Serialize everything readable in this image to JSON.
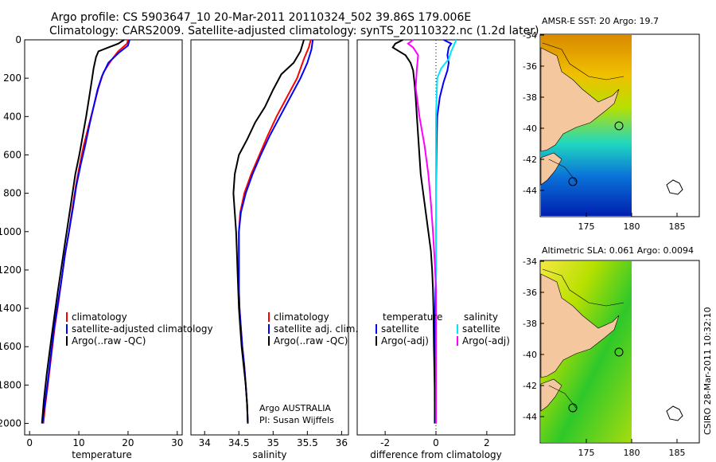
{
  "header": {
    "line1": "Argo profile: CS 5903647_10 20-Mar-2011 20110324_502 39.86S 179.006E",
    "line2": "Climatology: CARS2009. Satellite-adjusted climatology: synTS_20110322.nc (1.2d later)"
  },
  "colors": {
    "climatology": "#ff0000",
    "satellite": "#0000ff",
    "argo": "#000000",
    "salinity_satellite": "#00e5ff",
    "salinity_argo": "#ff00ff"
  },
  "chart_data": [
    {
      "type": "line",
      "xlabel": "temperature",
      "xlim": [
        -1,
        31
      ],
      "xticks": [
        "0",
        "10",
        "20",
        "30"
      ],
      "ylim": [
        0,
        2060
      ],
      "yticks": [
        "0",
        "200",
        "400",
        "600",
        "800",
        "1000",
        "1200",
        "1400",
        "1600",
        "1800",
        "2000"
      ],
      "legend": [
        "climatology",
        "satellite-adjusted climatology",
        "Argo(..raw -QC)"
      ],
      "series": [
        {
          "name": "climatology",
          "color": "climatology",
          "points": [
            [
              20,
              0
            ],
            [
              19.8,
              20
            ],
            [
              18,
              60
            ],
            [
              16.5,
              110
            ],
            [
              15,
              170
            ],
            [
              14,
              250
            ],
            [
              13,
              350
            ],
            [
              12,
              450
            ],
            [
              11,
              550
            ],
            [
              10.2,
              650
            ],
            [
              9.4,
              760
            ],
            [
              8.7,
              880
            ],
            [
              8,
              1000
            ],
            [
              7.2,
              1120
            ],
            [
              6.5,
              1250
            ],
            [
              5.8,
              1380
            ],
            [
              5.1,
              1500
            ],
            [
              4.4,
              1650
            ],
            [
              3.7,
              1800
            ],
            [
              3.1,
              1920
            ],
            [
              2.8,
              2000
            ]
          ]
        },
        {
          "name": "satellite-adjusted climatology",
          "color": "satellite",
          "points": [
            [
              20.3,
              0
            ],
            [
              20,
              30
            ],
            [
              18,
              70
            ],
            [
              16,
              120
            ],
            [
              14.7,
              190
            ],
            [
              13.8,
              260
            ],
            [
              13,
              350
            ],
            [
              12.1,
              450
            ],
            [
              11.3,
              550
            ],
            [
              10.4,
              650
            ],
            [
              9.5,
              760
            ],
            [
              8.8,
              880
            ],
            [
              8,
              1000
            ],
            [
              7.2,
              1120
            ],
            [
              6.5,
              1250
            ],
            [
              5.7,
              1380
            ],
            [
              5,
              1500
            ],
            [
              4.3,
              1650
            ],
            [
              3.6,
              1800
            ],
            [
              3,
              1920
            ],
            [
              2.6,
              2000
            ]
          ]
        },
        {
          "name": "Argo(..raw -QC)",
          "color": "argo",
          "points": [
            [
              19.2,
              0
            ],
            [
              18,
              20
            ],
            [
              16,
              40
            ],
            [
              14,
              60
            ],
            [
              13.5,
              90
            ],
            [
              13,
              150
            ],
            [
              12.6,
              220
            ],
            [
              12.1,
              300
            ],
            [
              11.5,
              400
            ],
            [
              10.8,
              500
            ],
            [
              10.1,
              600
            ],
            [
              9.3,
              700
            ],
            [
              8.6,
              820
            ],
            [
              7.9,
              940
            ],
            [
              7.2,
              1060
            ],
            [
              6.5,
              1180
            ],
            [
              5.8,
              1300
            ],
            [
              5.1,
              1430
            ],
            [
              4.3,
              1580
            ],
            [
              3.5,
              1740
            ],
            [
              2.9,
              1880
            ],
            [
              2.5,
              2000
            ]
          ]
        }
      ]
    },
    {
      "type": "line",
      "xlabel": "salinity",
      "xlim": [
        33.8,
        36.1
      ],
      "xticks": [
        "34",
        "34.5",
        "35",
        "35.5",
        "36"
      ],
      "ylim": [
        0,
        2060
      ],
      "legend": [
        "climatology",
        "satellite adj. clim.",
        "Argo(..raw -QC)"
      ],
      "annotation": [
        "Argo AUSTRALIA",
        "PI: Susan Wijffels"
      ],
      "series": [
        {
          "name": "climatology",
          "color": "climatology",
          "points": [
            [
              35.55,
              0
            ],
            [
              35.52,
              40
            ],
            [
              35.45,
              100
            ],
            [
              35.35,
              200
            ],
            [
              35.2,
              300
            ],
            [
              35.05,
              400
            ],
            [
              34.92,
              500
            ],
            [
              34.8,
              600
            ],
            [
              34.68,
              700
            ],
            [
              34.58,
              800
            ],
            [
              34.52,
              900
            ],
            [
              34.5,
              1000
            ],
            [
              34.5,
              1100
            ],
            [
              34.5,
              1200
            ],
            [
              34.5,
              1300
            ],
            [
              34.51,
              1400
            ],
            [
              34.53,
              1500
            ],
            [
              34.55,
              1600
            ],
            [
              34.58,
              1700
            ],
            [
              34.6,
              1800
            ],
            [
              34.62,
              1900
            ],
            [
              34.63,
              2000
            ]
          ]
        },
        {
          "name": "satellite adj. clim.",
          "color": "satellite",
          "points": [
            [
              35.58,
              0
            ],
            [
              35.56,
              50
            ],
            [
              35.5,
              120
            ],
            [
              35.4,
              200
            ],
            [
              35.25,
              300
            ],
            [
              35.1,
              400
            ],
            [
              34.95,
              500
            ],
            [
              34.82,
              600
            ],
            [
              34.7,
              700
            ],
            [
              34.6,
              800
            ],
            [
              34.53,
              900
            ],
            [
              34.5,
              1000
            ],
            [
              34.5,
              1100
            ],
            [
              34.5,
              1200
            ],
            [
              34.5,
              1300
            ],
            [
              34.51,
              1400
            ],
            [
              34.53,
              1500
            ],
            [
              34.55,
              1600
            ],
            [
              34.58,
              1700
            ],
            [
              34.6,
              1800
            ],
            [
              34.62,
              1900
            ],
            [
              34.63,
              2000
            ]
          ]
        },
        {
          "name": "Argo(..raw -QC)",
          "color": "argo",
          "points": [
            [
              35.45,
              0
            ],
            [
              35.4,
              60
            ],
            [
              35.3,
              120
            ],
            [
              35.12,
              180
            ],
            [
              35.0,
              260
            ],
            [
              34.88,
              350
            ],
            [
              34.74,
              430
            ],
            [
              34.62,
              520
            ],
            [
              34.5,
              600
            ],
            [
              34.44,
              700
            ],
            [
              34.42,
              800
            ],
            [
              34.44,
              900
            ],
            [
              34.46,
              1000
            ],
            [
              34.47,
              1100
            ],
            [
              34.48,
              1200
            ],
            [
              34.49,
              1300
            ],
            [
              34.5,
              1400
            ],
            [
              34.52,
              1500
            ],
            [
              34.54,
              1600
            ],
            [
              34.57,
              1700
            ],
            [
              34.6,
              1800
            ],
            [
              34.62,
              1900
            ],
            [
              34.63,
              2000
            ]
          ]
        }
      ]
    },
    {
      "type": "line",
      "xlabel": "difference from climatology",
      "xlim": [
        -3.1,
        3.1
      ],
      "xticks": [
        "-2",
        "0",
        "2"
      ],
      "ylim": [
        0,
        2060
      ],
      "legend_left_title": "temperature",
      "legend_right_title": "salinity",
      "legend_left": [
        "satellite",
        "Argo(-adj)"
      ],
      "legend_right": [
        "satellite",
        "Argo(-adj)"
      ],
      "series": [
        {
          "name": "temperature satellite",
          "color": "satellite",
          "points": [
            [
              0.3,
              0
            ],
            [
              0.6,
              20
            ],
            [
              0.5,
              40
            ],
            [
              0.45,
              80
            ],
            [
              0.5,
              120
            ],
            [
              0.45,
              160
            ],
            [
              0.3,
              220
            ],
            [
              0.15,
              300
            ],
            [
              0.05,
              400
            ],
            [
              0.02,
              600
            ],
            [
              0,
              800
            ],
            [
              0,
              1200
            ],
            [
              -0.05,
              1500
            ],
            [
              -0.05,
              2000
            ]
          ]
        },
        {
          "name": "temperature Argo(-adj)",
          "color": "argo",
          "points": [
            [
              -1.3,
              0
            ],
            [
              -1.6,
              20
            ],
            [
              -1.7,
              40
            ],
            [
              -1.2,
              80
            ],
            [
              -1.0,
              120
            ],
            [
              -0.9,
              160
            ],
            [
              -0.85,
              220
            ],
            [
              -0.8,
              300
            ],
            [
              -0.75,
              400
            ],
            [
              -0.7,
              500
            ],
            [
              -0.65,
              600
            ],
            [
              -0.6,
              700
            ],
            [
              -0.5,
              800
            ],
            [
              -0.4,
              900
            ],
            [
              -0.3,
              1000
            ],
            [
              -0.2,
              1100
            ],
            [
              -0.15,
              1200
            ],
            [
              -0.12,
              1300
            ],
            [
              -0.1,
              1400
            ],
            [
              -0.08,
              1600
            ],
            [
              -0.05,
              1800
            ],
            [
              -0.02,
              2000
            ]
          ]
        },
        {
          "name": "salinity satellite",
          "color": "salinity_satellite",
          "points": [
            [
              0.8,
              0
            ],
            [
              0.7,
              30
            ],
            [
              0.6,
              60
            ],
            [
              0.5,
              100
            ],
            [
              0.2,
              150
            ],
            [
              0.05,
              200
            ],
            [
              0,
              400
            ],
            [
              0,
              2000
            ]
          ]
        },
        {
          "name": "salinity Argo(-adj)",
          "color": "salinity_argo",
          "points": [
            [
              -0.9,
              0
            ],
            [
              -1.1,
              20
            ],
            [
              -0.9,
              40
            ],
            [
              -0.7,
              80
            ],
            [
              -0.75,
              150
            ],
            [
              -0.8,
              250
            ],
            [
              -0.65,
              400
            ],
            [
              -0.45,
              550
            ],
            [
              -0.3,
              700
            ],
            [
              -0.2,
              850
            ],
            [
              -0.12,
              1000
            ],
            [
              -0.05,
              1150
            ],
            [
              0,
              1300
            ],
            [
              0,
              2000
            ]
          ]
        }
      ]
    }
  ],
  "maps": {
    "xticks": [
      "175",
      "180",
      "185"
    ],
    "yticks": [
      "-34",
      "-36",
      "-38",
      "-40",
      "-42",
      "-44"
    ],
    "sst_title": "AMSR-E SST: 20 Argo: 19.7",
    "sla_title": "Altimetric SLA: 0.061 Argo: 0.0094"
  },
  "footer": {
    "credit": "CSIRO 28-Mar-2011 10:32:10"
  }
}
